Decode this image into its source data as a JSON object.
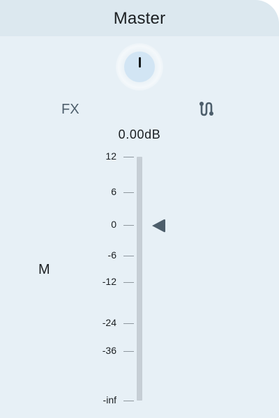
{
  "strip": {
    "title": "Master",
    "fx_label": "FX",
    "volume_readout": "0.00dB",
    "mono_label": "M"
  },
  "knob": {
    "icon": "pan-knob-icon",
    "value": "center"
  },
  "routing": {
    "icon": "routing-icon"
  },
  "fader": {
    "value_db": 0,
    "handle_icon": "fader-handle-triangle-icon",
    "scale": [
      "12",
      "6",
      "0",
      "-6",
      "-12",
      "-24",
      "-36",
      "-inf"
    ]
  },
  "colors": {
    "panel_background": "#e7f0f6",
    "header_background": "#dce8ef",
    "knob_fill": "#d2e5f4",
    "handle": "#4d5e6b",
    "track": "#c6ced5"
  }
}
